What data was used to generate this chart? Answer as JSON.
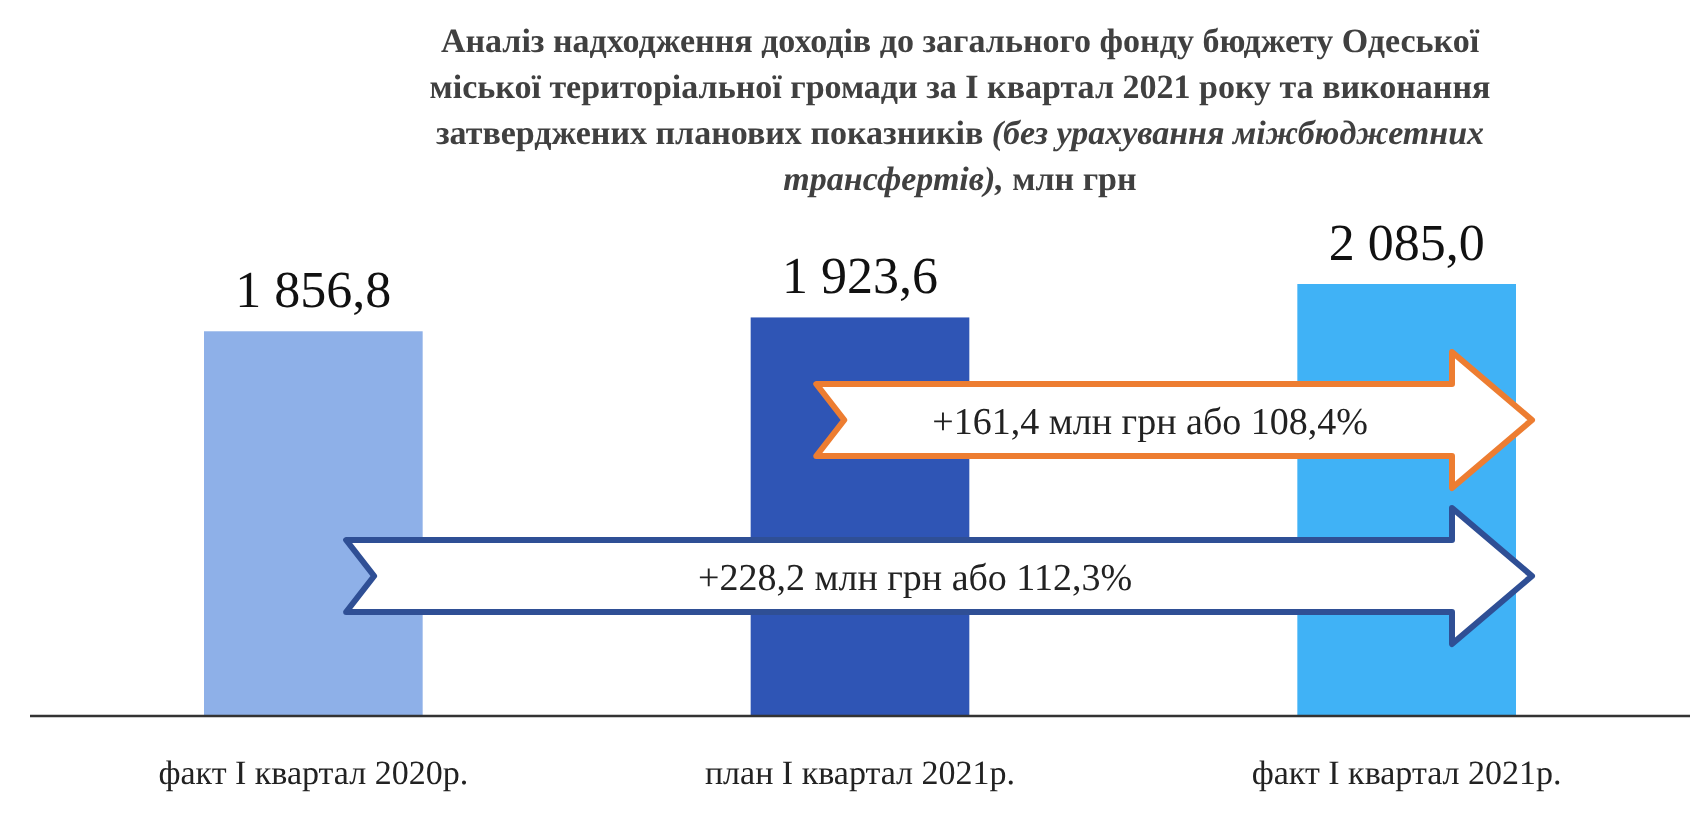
{
  "chart_data": {
    "type": "bar",
    "title": "Аналіз надходження доходів до загального фонду бюджету Одеської міської територіальної громади за І квартал 2021 року та виконання затверджених планових показників (без урахування міжбюджетних трансфертів), млн грн",
    "categories": [
      "факт І квартал 2020р.",
      "план І квартал 2021р.",
      "факт І квартал 2021р."
    ],
    "values": [
      1856.8,
      1923.6,
      2085.0
    ],
    "colors": [
      "#8eb0e8",
      "#2f55b5",
      "#40b2f6"
    ],
    "value_labels": [
      "1 856,8",
      "1 923,6",
      "2 085,0"
    ],
    "annotations": [
      "+161,4 млн грн або 108,4%",
      "+228,2 млн грн або 112,3%"
    ]
  }
}
